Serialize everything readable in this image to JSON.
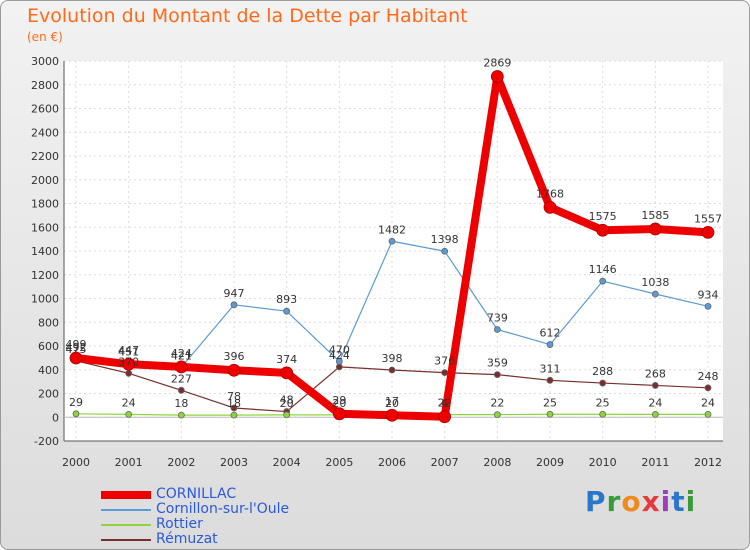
{
  "title": "Evolution du Montant de la Dette par Habitant",
  "subtitle": "(en €)",
  "logo": [
    "P",
    "r",
    "o",
    "x",
    "i",
    "t",
    "i"
  ],
  "chart_data": {
    "type": "line",
    "title": "Evolution du Montant de la Dette par Habitant",
    "subtitle": "(en €)",
    "x": [
      "2000",
      "2001",
      "2002",
      "2003",
      "2004",
      "2005",
      "2006",
      "2007",
      "2008",
      "2009",
      "2010",
      "2011",
      "2012"
    ],
    "ylim": [
      -200,
      3000
    ],
    "yticks": [
      -200,
      0,
      200,
      400,
      600,
      800,
      1000,
      1200,
      1400,
      1600,
      1800,
      2000,
      2200,
      2400,
      2600,
      2800,
      3000
    ],
    "grid": true,
    "legend_position": "bottom-left",
    "series": [
      {
        "name": "CORNILLAC",
        "color": "#ee0000",
        "values": [
          499,
          447,
          424,
          396,
          374,
          29,
          17,
          4,
          2869,
          1768,
          1575,
          1585,
          1557
        ],
        "labels": [
          "499",
          "447",
          "424",
          "396",
          "374",
          "29",
          "17",
          "4",
          "2869",
          "1768",
          "1575",
          "1585",
          "1557"
        ]
      },
      {
        "name": "Cornillon-sur-l'Oule",
        "color": "#5b9bd5",
        "values": [
          492,
          451,
          421,
          947,
          893,
          470,
          1482,
          1398,
          739,
          612,
          1146,
          1038,
          934
        ],
        "labels": [
          "492",
          "451",
          "421",
          "947",
          "893",
          "470",
          "1482",
          "1398",
          "739",
          "612",
          "1146",
          "1038",
          "934"
        ]
      },
      {
        "name": "Rottier",
        "color": "#8cd63c",
        "values": [
          29,
          24,
          18,
          18,
          20,
          20,
          20,
          22,
          22,
          25,
          25,
          24,
          24
        ],
        "labels": [
          "29",
          "24",
          "18",
          "18",
          "20",
          "20",
          "20",
          "22",
          "22",
          "25",
          "25",
          "24",
          "24"
        ]
      },
      {
        "name": "Rémuzat",
        "color": "#7a2e2e",
        "values": [
          475,
          370,
          227,
          78,
          48,
          424,
          398,
          376,
          359,
          311,
          288,
          268,
          248
        ],
        "labels": [
          "475",
          "370",
          "227",
          "78",
          "48",
          "424",
          "398",
          "376",
          "359",
          "311",
          "288",
          "268",
          "248"
        ]
      }
    ]
  }
}
